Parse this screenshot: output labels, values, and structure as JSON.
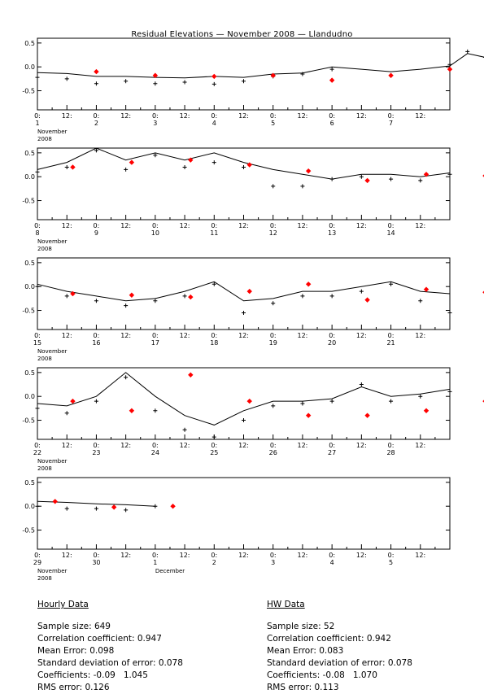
{
  "title": "Residual Elevations — November 2008 — Llandudno",
  "colors": {
    "observed": "#000000",
    "hourly_marker": "#000000",
    "hw_marker": "#ff0000"
  },
  "chart_data": [
    {
      "type": "line",
      "panel": "1-7 November 2008",
      "ylim": [
        -0.9,
        0.6
      ],
      "yticks": [
        "0.5",
        "0.0",
        "-0.5"
      ],
      "tick_labels": [
        [
          "0:",
          "1"
        ],
        [
          "12:",
          ""
        ],
        [
          "0:",
          "2"
        ],
        [
          "12:",
          ""
        ],
        [
          "0:",
          "3"
        ],
        [
          "12:",
          ""
        ],
        [
          "0:",
          "4"
        ],
        [
          "12:",
          ""
        ],
        [
          "0:",
          "5"
        ],
        [
          "12:",
          ""
        ],
        [
          "0:",
          "6"
        ],
        [
          "12:",
          ""
        ],
        [
          "0:",
          "7"
        ],
        [
          "12:",
          ""
        ]
      ],
      "month_label": [
        "November",
        "2008"
      ],
      "series": [
        {
          "kind": "line",
          "values": [
            [
              0,
              -0.12
            ],
            [
              0.5,
              -0.14
            ],
            [
              1,
              -0.2
            ],
            [
              1.5,
              -0.2
            ],
            [
              2,
              -0.22
            ],
            [
              2.5,
              -0.23
            ],
            [
              3,
              -0.2
            ],
            [
              3.5,
              -0.22
            ],
            [
              4,
              -0.15
            ],
            [
              4.5,
              -0.13
            ],
            [
              5,
              0.0
            ],
            [
              5.5,
              -0.05
            ],
            [
              6,
              -0.1
            ],
            [
              6.5,
              -0.05
            ],
            [
              7,
              0.02
            ],
            [
              7.3,
              0.28
            ],
            [
              7.6,
              0.2
            ],
            [
              7.99,
              0.17
            ]
          ]
        },
        {
          "kind": "hourly",
          "values": [
            [
              0,
              -0.22
            ],
            [
              0.5,
              -0.25
            ],
            [
              1,
              -0.35
            ],
            [
              1.5,
              -0.3
            ],
            [
              2,
              -0.35
            ],
            [
              2.5,
              -0.32
            ],
            [
              3,
              -0.36
            ],
            [
              3.5,
              -0.3
            ],
            [
              4,
              -0.2
            ],
            [
              4.5,
              -0.15
            ],
            [
              5,
              -0.05
            ],
            [
              7,
              0.05
            ],
            [
              7.3,
              0.32
            ],
            [
              7.6,
              0.2
            ],
            [
              7.99,
              0.15
            ]
          ]
        },
        {
          "kind": "hw",
          "values": [
            [
              1.0,
              -0.1
            ],
            [
              2.0,
              -0.18
            ],
            [
              3.0,
              -0.2
            ],
            [
              4.0,
              -0.18
            ],
            [
              5.0,
              -0.28
            ],
            [
              6.0,
              -0.18
            ],
            [
              7.0,
              -0.05
            ],
            [
              8.0,
              -0.02
            ],
            [
              9.0,
              -0.1
            ],
            [
              10.0,
              -0.08
            ],
            [
              11.0,
              -0.02
            ],
            [
              12.0,
              0.1
            ],
            [
              13.0,
              0.22
            ]
          ]
        }
      ]
    },
    {
      "type": "line",
      "panel": "8-14 November 2008",
      "ylim": [
        -0.9,
        0.6
      ],
      "yticks": [
        "0.5",
        "0.0",
        "-0.5"
      ],
      "tick_labels": [
        [
          "0:",
          "8"
        ],
        [
          "12:",
          ""
        ],
        [
          "0:",
          "9"
        ],
        [
          "12:",
          ""
        ],
        [
          "0:",
          "10"
        ],
        [
          "12:",
          ""
        ],
        [
          "0:",
          "11"
        ],
        [
          "12:",
          ""
        ],
        [
          "0:",
          "12"
        ],
        [
          "12:",
          ""
        ],
        [
          "0:",
          "13"
        ],
        [
          "12:",
          ""
        ],
        [
          "0:",
          "14"
        ],
        [
          "12:",
          ""
        ]
      ],
      "month_label": [
        "November",
        "2008"
      ],
      "series": [
        {
          "kind": "line",
          "values": [
            [
              0,
              0.15
            ],
            [
              0.5,
              0.3
            ],
            [
              1,
              0.6
            ],
            [
              1.5,
              0.35
            ],
            [
              2,
              0.5
            ],
            [
              2.5,
              0.35
            ],
            [
              3,
              0.5
            ],
            [
              3.5,
              0.3
            ],
            [
              4,
              0.15
            ],
            [
              4.5,
              0.05
            ],
            [
              5,
              -0.05
            ],
            [
              5.5,
              0.05
            ],
            [
              6,
              0.05
            ],
            [
              6.5,
              0.0
            ],
            [
              7,
              0.08
            ]
          ]
        },
        {
          "kind": "hourly",
          "values": [
            [
              0,
              0.1
            ],
            [
              0.5,
              0.2
            ],
            [
              1,
              0.55
            ],
            [
              1.5,
              0.15
            ],
            [
              2,
              0.45
            ],
            [
              2.5,
              0.2
            ],
            [
              3,
              0.3
            ],
            [
              3.5,
              0.2
            ],
            [
              4,
              -0.2
            ],
            [
              4.5,
              -0.2
            ],
            [
              5,
              -0.05
            ],
            [
              5.5,
              0.0
            ],
            [
              6,
              -0.05
            ],
            [
              6.5,
              -0.08
            ],
            [
              7,
              0.05
            ]
          ]
        },
        {
          "kind": "hw",
          "values": [
            [
              0.6,
              0.2
            ],
            [
              1.6,
              0.3
            ],
            [
              2.6,
              0.35
            ],
            [
              3.6,
              0.25
            ],
            [
              4.6,
              0.12
            ],
            [
              5.6,
              -0.08
            ],
            [
              6.6,
              0.05
            ],
            [
              7.6,
              0.02
            ],
            [
              8.6,
              0.04
            ],
            [
              9.6,
              0.06
            ],
            [
              10.6,
              0.05
            ],
            [
              11.6,
              0.08
            ]
          ]
        }
      ]
    },
    {
      "type": "line",
      "panel": "15-21 November 2008",
      "ylim": [
        -0.9,
        0.6
      ],
      "yticks": [
        "0.5",
        "0.0",
        "-0.5"
      ],
      "tick_labels": [
        [
          "0:",
          "15"
        ],
        [
          "12:",
          ""
        ],
        [
          "0:",
          "16"
        ],
        [
          "12:",
          ""
        ],
        [
          "0:",
          "17"
        ],
        [
          "12:",
          ""
        ],
        [
          "0:",
          "18"
        ],
        [
          "12:",
          ""
        ],
        [
          "0:",
          "19"
        ],
        [
          "12:",
          ""
        ],
        [
          "0:",
          "20"
        ],
        [
          "12:",
          ""
        ],
        [
          "0:",
          "21"
        ],
        [
          "12:",
          ""
        ]
      ],
      "month_label": [
        "November",
        "2008"
      ],
      "series": [
        {
          "kind": "line",
          "values": [
            [
              0,
              0.05
            ],
            [
              0.5,
              -0.1
            ],
            [
              1,
              -0.2
            ],
            [
              1.5,
              -0.3
            ],
            [
              2,
              -0.25
            ],
            [
              2.5,
              -0.1
            ],
            [
              3,
              0.1
            ],
            [
              3.5,
              -0.3
            ],
            [
              4,
              -0.25
            ],
            [
              4.5,
              -0.1
            ],
            [
              5,
              -0.1
            ],
            [
              5.5,
              0.0
            ],
            [
              6,
              0.1
            ],
            [
              6.5,
              -0.1
            ],
            [
              7,
              -0.15
            ]
          ]
        },
        {
          "kind": "hourly",
          "values": [
            [
              0,
              0.0
            ],
            [
              0.5,
              -0.2
            ],
            [
              1,
              -0.3
            ],
            [
              1.5,
              -0.4
            ],
            [
              2,
              -0.3
            ],
            [
              2.5,
              -0.2
            ],
            [
              3,
              0.05
            ],
            [
              3.5,
              -0.55
            ],
            [
              4,
              -0.35
            ],
            [
              4.5,
              -0.2
            ],
            [
              5,
              -0.2
            ],
            [
              5.5,
              -0.1
            ],
            [
              6,
              0.05
            ],
            [
              6.5,
              -0.3
            ],
            [
              7,
              -0.55
            ]
          ]
        },
        {
          "kind": "hw",
          "values": [
            [
              0.6,
              -0.15
            ],
            [
              1.6,
              -0.18
            ],
            [
              2.6,
              -0.22
            ],
            [
              3.6,
              -0.1
            ],
            [
              4.6,
              0.05
            ],
            [
              5.6,
              -0.28
            ],
            [
              6.6,
              -0.06
            ],
            [
              7.6,
              -0.12
            ],
            [
              8.6,
              -0.05
            ],
            [
              9.6,
              -0.1
            ],
            [
              10.6,
              0.1
            ],
            [
              11.6,
              -0.2
            ]
          ]
        }
      ]
    },
    {
      "type": "line",
      "panel": "22-28 November 2008",
      "ylim": [
        -0.9,
        0.6
      ],
      "yticks": [
        "0.5",
        "0.0",
        "-0.5"
      ],
      "tick_labels": [
        [
          "0:",
          "22"
        ],
        [
          "12:",
          ""
        ],
        [
          "0:",
          "23"
        ],
        [
          "12:",
          ""
        ],
        [
          "0:",
          "24"
        ],
        [
          "12:",
          ""
        ],
        [
          "0:",
          "25"
        ],
        [
          "12:",
          ""
        ],
        [
          "0:",
          "26"
        ],
        [
          "12:",
          ""
        ],
        [
          "0:",
          "27"
        ],
        [
          "12:",
          ""
        ],
        [
          "0:",
          "28"
        ],
        [
          "12:",
          ""
        ]
      ],
      "month_label": [
        "November",
        "2008"
      ],
      "series": [
        {
          "kind": "line",
          "values": [
            [
              0,
              -0.15
            ],
            [
              0.5,
              -0.2
            ],
            [
              1,
              0.0
            ],
            [
              1.5,
              0.5
            ],
            [
              2,
              0.0
            ],
            [
              2.5,
              -0.4
            ],
            [
              3,
              -0.6
            ],
            [
              3.5,
              -0.3
            ],
            [
              4,
              -0.1
            ],
            [
              4.5,
              -0.1
            ],
            [
              5,
              -0.05
            ],
            [
              5.5,
              0.2
            ],
            [
              6,
              0.0
            ],
            [
              6.5,
              0.05
            ],
            [
              7,
              0.15
            ]
          ]
        },
        {
          "kind": "hourly",
          "values": [
            [
              0,
              -0.25
            ],
            [
              0.5,
              -0.35
            ],
            [
              1,
              -0.1
            ],
            [
              1.5,
              0.4
            ],
            [
              2,
              -0.3
            ],
            [
              2.5,
              -0.7
            ],
            [
              3,
              -0.85
            ],
            [
              3.5,
              -0.5
            ],
            [
              4,
              -0.2
            ],
            [
              4.5,
              -0.15
            ],
            [
              5,
              -0.1
            ],
            [
              5.5,
              0.25
            ],
            [
              6,
              -0.1
            ],
            [
              6.5,
              0.0
            ],
            [
              7,
              0.1
            ]
          ]
        },
        {
          "kind": "hw",
          "values": [
            [
              0.6,
              -0.1
            ],
            [
              1.6,
              -0.3
            ],
            [
              2.6,
              0.45
            ],
            [
              3.6,
              -0.1
            ],
            [
              4.6,
              -0.4
            ],
            [
              5.6,
              -0.4
            ],
            [
              6.6,
              -0.3
            ],
            [
              7.6,
              -0.1
            ],
            [
              8.6,
              -0.12
            ],
            [
              9.6,
              -0.05
            ],
            [
              10.6,
              0.3
            ],
            [
              11.6,
              0.0
            ],
            [
              12.6,
              0.05
            ],
            [
              13.6,
              0.15
            ]
          ]
        }
      ]
    },
    {
      "type": "line",
      "panel": "29 November - 5 December 2008",
      "ylim": [
        -0.9,
        0.6
      ],
      "yticks": [
        "0.5",
        "0.0",
        "-0.5"
      ],
      "tick_labels": [
        [
          "0:",
          "29"
        ],
        [
          "12:",
          ""
        ],
        [
          "0:",
          "30"
        ],
        [
          "12:",
          ""
        ],
        [
          "0:",
          "1"
        ],
        [
          "12:",
          ""
        ],
        [
          "0:",
          "2"
        ],
        [
          "12:",
          ""
        ],
        [
          "0:",
          "3"
        ],
        [
          "12:",
          ""
        ],
        [
          "0:",
          "4"
        ],
        [
          "12:",
          ""
        ],
        [
          "0:",
          "5"
        ],
        [
          "12:",
          ""
        ]
      ],
      "month_label": [
        "November",
        "2008"
      ],
      "extra_label": "December",
      "series": [
        {
          "kind": "line",
          "values": [
            [
              0,
              0.1
            ],
            [
              0.5,
              0.08
            ],
            [
              1,
              0.05
            ],
            [
              1.5,
              0.03
            ],
            [
              2,
              0.0
            ]
          ]
        },
        {
          "kind": "hourly",
          "values": [
            [
              0,
              0.0
            ],
            [
              0.5,
              -0.05
            ],
            [
              1,
              -0.05
            ],
            [
              1.5,
              -0.08
            ],
            [
              2,
              0.0
            ]
          ]
        },
        {
          "kind": "hw",
          "values": [
            [
              0.3,
              0.1
            ],
            [
              1.3,
              -0.02
            ],
            [
              2.3,
              0.0
            ]
          ]
        }
      ]
    }
  ],
  "stats": {
    "hourly": {
      "heading": "Hourly Data",
      "rows": [
        "Sample size: 649",
        "Correlation coefficient: 0.947",
        "Mean Error: 0.098",
        "Standard deviation of error: 0.078",
        "Coefficients: -0.09   1.045",
        "RMS error: 0.126"
      ]
    },
    "hw": {
      "heading": "HW Data",
      "rows": [
        "Sample size: 52",
        "Correlation coefficient: 0.942",
        "Mean Error: 0.083",
        "Standard deviation of error: 0.078",
        "Coefficients: -0.08   1.070",
        "RMS error: 0.113"
      ]
    }
  }
}
